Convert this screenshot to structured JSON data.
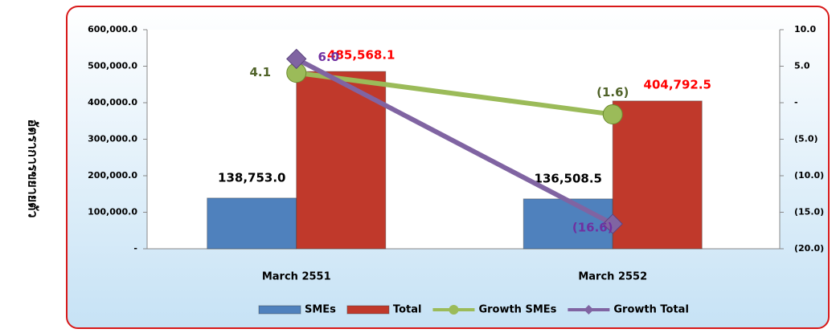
{
  "chart_data": {
    "type": "bar_line",
    "y_label": "อัตราการขยายตัว",
    "categories": [
      "March 2551",
      "March 2552"
    ],
    "series": [
      {
        "name": "SMEs",
        "color": "#4f81bd",
        "values": [
          138753.0,
          136508.5
        ],
        "value_labels": [
          "138,753.0",
          "136,508.5"
        ],
        "label_color": "#000000"
      },
      {
        "name": "Total",
        "color": "#c0392b",
        "values": [
          485568.1,
          404792.5
        ],
        "value_labels": [
          "485,568.1",
          "404,792.5"
        ],
        "label_color": "#ff0000"
      },
      {
        "name": "Growth SMEs",
        "color": "#9bbb59",
        "axis": "y2",
        "values": [
          4.1,
          -1.6
        ],
        "value_labels": [
          "4.1",
          "(1.6)"
        ],
        "label_color": "#4f6228"
      },
      {
        "name": "Growth Total",
        "color": "#8064a2",
        "axis": "y2",
        "values": [
          6.0,
          -16.6
        ],
        "value_labels": [
          "6.0",
          "(16.6)"
        ],
        "label_color": "#7030a0"
      }
    ],
    "ylim": [
      0,
      600000
    ],
    "yticks": [
      {
        "value": 0,
        "label": "-"
      },
      {
        "value": 100000,
        "label": "100,000.0"
      },
      {
        "value": 200000,
        "label": "200,000.0"
      },
      {
        "value": 300000,
        "label": "300,000.0"
      },
      {
        "value": 400000,
        "label": "400,000.0"
      },
      {
        "value": 500000,
        "label": "500,000.0"
      },
      {
        "value": 600000,
        "label": "600,000.0"
      }
    ],
    "y2lim": [
      -20,
      10
    ],
    "y2ticks": [
      {
        "value": -20,
        "label": "(20.0)"
      },
      {
        "value": -15,
        "label": "(15.0)"
      },
      {
        "value": -10,
        "label": "(10.0)"
      },
      {
        "value": -5,
        "label": "(5.0)"
      },
      {
        "value": 0,
        "label": "-"
      },
      {
        "value": 5,
        "label": "5.0"
      },
      {
        "value": 10,
        "label": "10.0"
      }
    ],
    "legend": "bottom"
  }
}
